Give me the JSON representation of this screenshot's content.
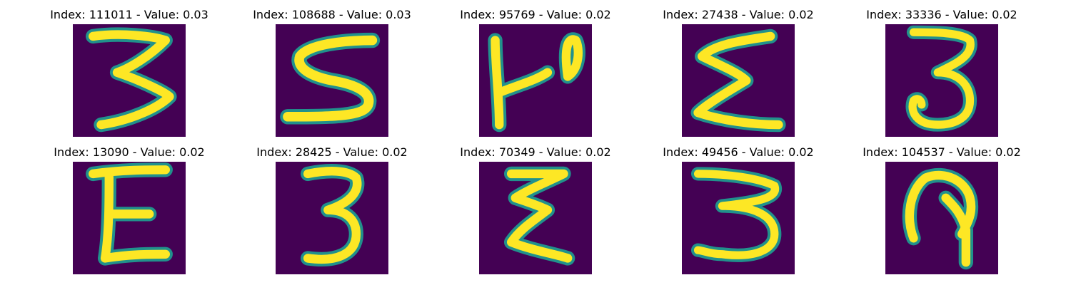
{
  "colors": {
    "background": "#440154",
    "stroke_mid": "#21918c",
    "stroke_high": "#fde725"
  },
  "panels": [
    {
      "title": "Index: 111011 - Value: 0.03",
      "glyph": "3"
    },
    {
      "title": "Index: 108688 - Value: 0.03",
      "glyph": "S"
    },
    {
      "title": "Index: 95769 - Value: 0.02",
      "glyph": "P-rotated"
    },
    {
      "title": "Index: 27438 - Value: 0.02",
      "glyph": "Σ"
    },
    {
      "title": "Index: 33336 - Value: 0.02",
      "glyph": "3"
    },
    {
      "title": "Index: 13090 - Value: 0.02",
      "glyph": "E"
    },
    {
      "title": "Index: 28425 - Value: 0.02",
      "glyph": "3"
    },
    {
      "title": "Index: 70349 - Value: 0.02",
      "glyph": "Σ"
    },
    {
      "title": "Index: 49456 - Value: 0.02",
      "glyph": "3"
    },
    {
      "title": "Index: 104537 - Value: 0.02",
      "glyph": "loop"
    }
  ]
}
